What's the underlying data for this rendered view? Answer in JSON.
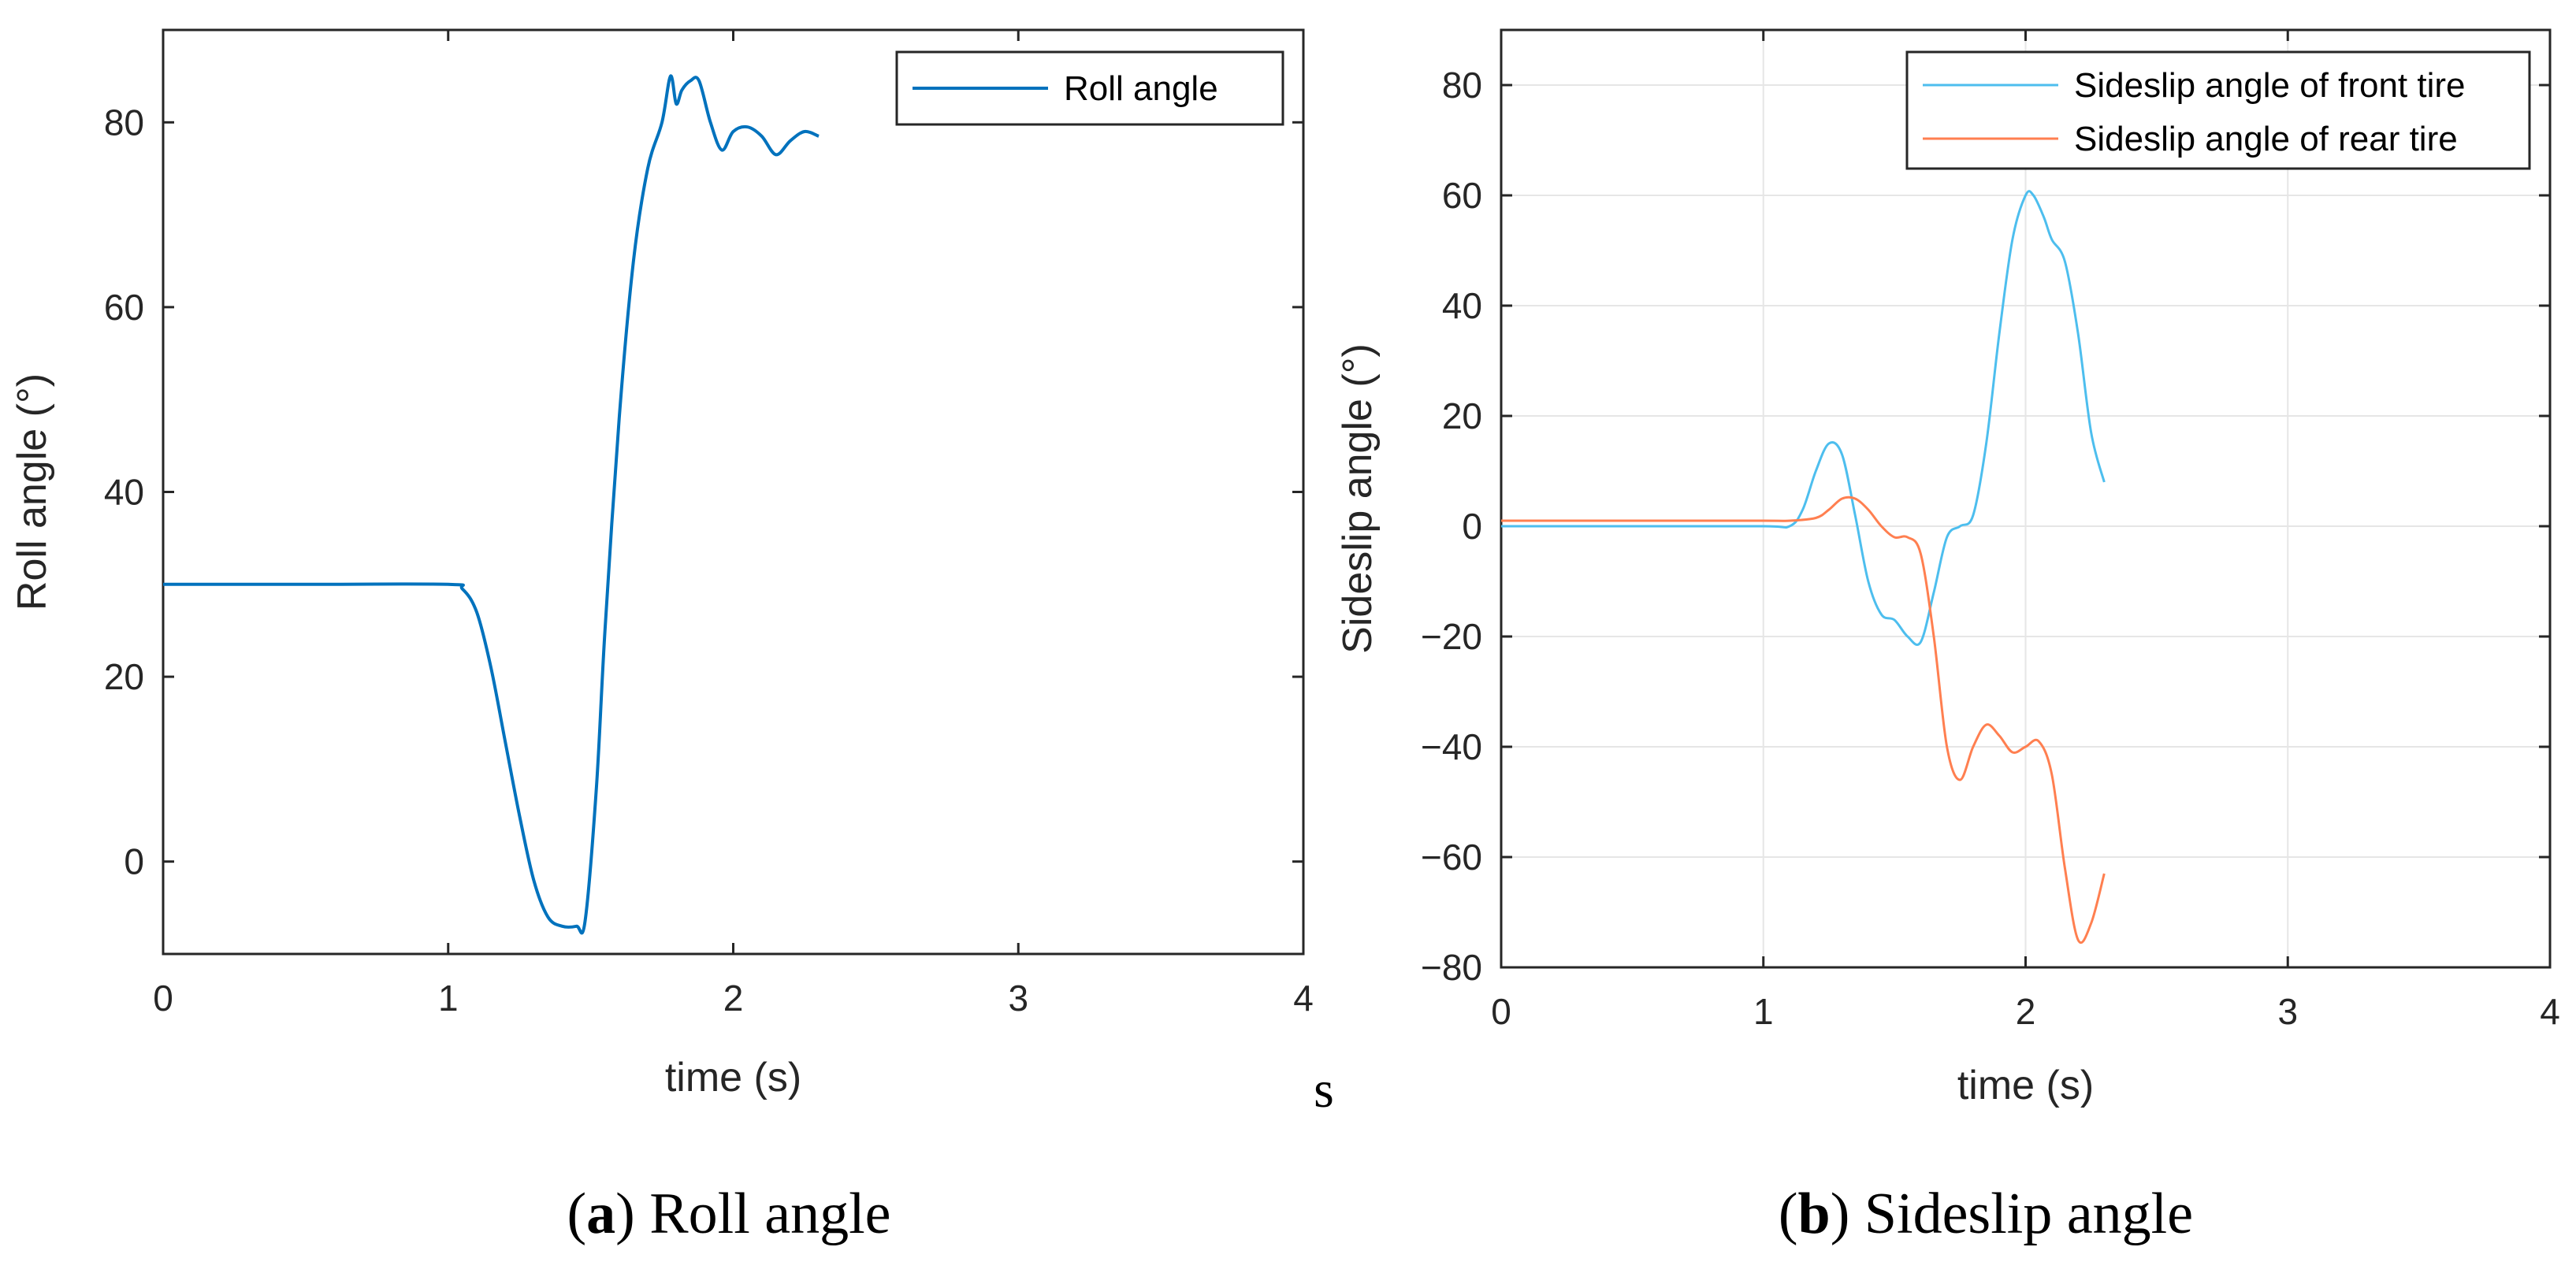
{
  "chart_data": [
    {
      "type": "line",
      "panel": "a",
      "xlabel": "time (s)",
      "ylabel": "Roll angle (°)",
      "xlim": [
        0,
        4
      ],
      "ylim": [
        -10,
        90
      ],
      "xticks": [
        0,
        1,
        2,
        3,
        4
      ],
      "yticks": [
        0,
        20,
        40,
        60,
        80
      ],
      "grid": false,
      "legend_position": "top-right",
      "series": [
        {
          "name": "Roll angle",
          "color": "#0072BD",
          "x": [
            0,
            0.5,
            1.0,
            1.05,
            1.1,
            1.15,
            1.2,
            1.25,
            1.3,
            1.35,
            1.4,
            1.45,
            1.48,
            1.52,
            1.55,
            1.6,
            1.65,
            1.7,
            1.75,
            1.78,
            1.8,
            1.82,
            1.85,
            1.88,
            1.92,
            1.96,
            2.0,
            2.05,
            2.1,
            2.15,
            2.2,
            2.25,
            2.3
          ],
          "y": [
            30,
            30,
            30,
            29.5,
            27,
            21,
            13,
            5,
            -2,
            -6,
            -7,
            -7,
            -6.5,
            8,
            25,
            48,
            65,
            75,
            80,
            85,
            82,
            83.5,
            84.5,
            84.5,
            80,
            77,
            79,
            79.5,
            78.5,
            76.5,
            78,
            79,
            78.5
          ]
        }
      ]
    },
    {
      "type": "line",
      "panel": "b",
      "xlabel": "time (s)",
      "ylabel": "Sideslip angle (°)",
      "xlim": [
        0,
        4
      ],
      "ylim": [
        -80,
        90
      ],
      "xticks": [
        0,
        1,
        2,
        3,
        4
      ],
      "yticks": [
        -80,
        -60,
        -40,
        -20,
        0,
        20,
        40,
        60,
        80
      ],
      "ytick_labels": [
        "−80",
        "−60",
        "−40",
        "−20",
        "0",
        "20",
        "40",
        "60",
        "80"
      ],
      "grid": true,
      "legend_position": "top-right",
      "series": [
        {
          "name": "Sideslip angle of front tire",
          "color": "#4DBEEE",
          "x": [
            0,
            0.5,
            1.0,
            1.1,
            1.15,
            1.2,
            1.25,
            1.3,
            1.35,
            1.4,
            1.45,
            1.5,
            1.55,
            1.6,
            1.65,
            1.7,
            1.75,
            1.8,
            1.85,
            1.9,
            1.95,
            2.0,
            2.03,
            2.07,
            2.1,
            2.15,
            2.2,
            2.25,
            2.3
          ],
          "y": [
            0,
            0,
            0,
            0,
            3,
            10,
            15,
            13,
            2,
            -10,
            -16,
            -17,
            -20,
            -21,
            -12,
            -2,
            0,
            2,
            15,
            35,
            52,
            60,
            60,
            56,
            52,
            48,
            35,
            17,
            8
          ]
        },
        {
          "name": "Sideslip angle of rear tire",
          "color": "#FF7F50",
          "x": [
            0,
            0.5,
            1.0,
            1.1,
            1.2,
            1.25,
            1.3,
            1.35,
            1.4,
            1.45,
            1.5,
            1.55,
            1.6,
            1.65,
            1.7,
            1.75,
            1.8,
            1.85,
            1.9,
            1.95,
            2.0,
            2.05,
            2.1,
            2.15,
            2.2,
            2.25,
            2.3
          ],
          "y": [
            1,
            1,
            1,
            1,
            1.5,
            3,
            5,
            5,
            3,
            0,
            -2,
            -2,
            -5,
            -20,
            -40,
            -46,
            -40,
            -36,
            -38,
            -41,
            -40,
            -39,
            -45,
            -62,
            -75,
            -72,
            -63
          ]
        }
      ]
    }
  ],
  "captions": {
    "a_letter": "a",
    "a_text": " Roll angle",
    "b_letter": "b",
    "b_text": " Sideslip angle",
    "open_paren": "(",
    "close_paren": ")"
  },
  "stray_text": "s"
}
